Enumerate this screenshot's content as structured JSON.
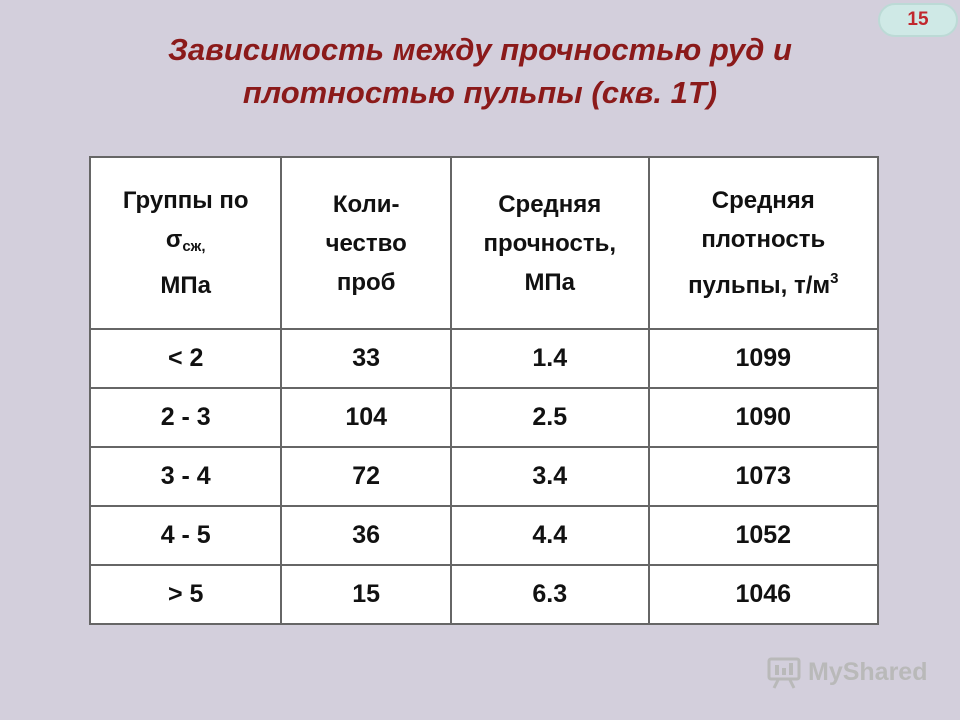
{
  "slide_number": "15",
  "title": {
    "line1": "Зависимость между прочностью руд и",
    "line2": "плотностью пульпы  (скв. 1Т)"
  },
  "table": {
    "headers": {
      "col1": {
        "line1": "Группы по",
        "sigma": "σ",
        "sigma_sub": "сж,",
        "line3": "МПа"
      },
      "col2": {
        "line1": "Коли-",
        "line2": "чество",
        "line3": "проб"
      },
      "col3": {
        "line1": "Средняя",
        "line2": "прочность,",
        "line3": "МПа"
      },
      "col4": {
        "line1": "Средняя",
        "line2": "плотность",
        "line3": "пульпы, т/м",
        "sup": "3"
      }
    },
    "rows": [
      [
        "< 2",
        "33",
        "1.4",
        "1099"
      ],
      [
        "2 - 3",
        "104",
        "2.5",
        "1090"
      ],
      [
        "3 - 4",
        "72",
        "3.4",
        "1073"
      ],
      [
        "4 - 5",
        "36",
        "4.4",
        "1052"
      ],
      [
        "> 5",
        "15",
        "6.3",
        "1046"
      ]
    ]
  },
  "watermark": {
    "text": "MyShared",
    "icon": "presentation-board-icon"
  }
}
